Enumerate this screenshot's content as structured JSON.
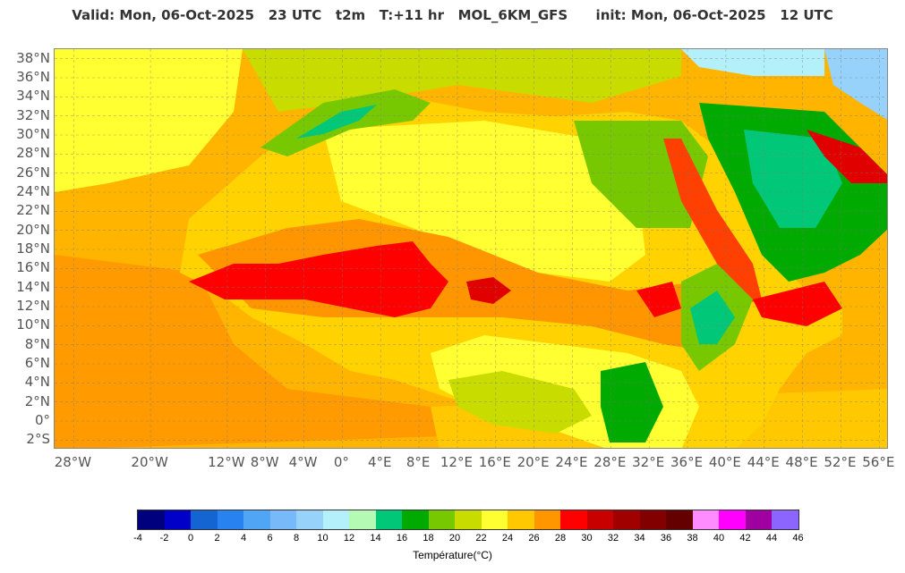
{
  "title": "Valid: Mon, 06-Oct-2025   23 UTC   t2m   T:+11 hr   MOL_6KM_GFS      init: Mon, 06-Oct-2025   12 UTC",
  "map": {
    "lat_labels": [
      "38°N",
      "36°N",
      "34°N",
      "32°N",
      "30°N",
      "28°N",
      "26°N",
      "24°N",
      "22°N",
      "20°N",
      "18°N",
      "16°N",
      "14°N",
      "12°N",
      "10°N",
      "8°N",
      "6°N",
      "4°N",
      "2°N",
      "0°",
      "2°S"
    ],
    "lon_labels": [
      "28°W",
      "20°W",
      "12°W",
      "8°W",
      "4°W",
      "0°",
      "4°E",
      "8°E",
      "12°E",
      "16°E",
      "20°E",
      "24°E",
      "28°E",
      "32°E",
      "36°E",
      "40°E",
      "44°E",
      "48°E",
      "52°E",
      "56°E"
    ],
    "lon_values": [
      -28,
      -20,
      -12,
      -8,
      -4,
      0,
      4,
      8,
      12,
      16,
      20,
      24,
      28,
      32,
      36,
      40,
      44,
      48,
      52,
      56
    ],
    "lon_range": [
      -30,
      57
    ],
    "lat_range": [
      -3,
      39
    ],
    "grid": true
  },
  "colorbar": {
    "title": "Température(°C)",
    "ticks": [
      "-4",
      "-2",
      "0",
      "2",
      "4",
      "6",
      "8",
      "10",
      "12",
      "14",
      "16",
      "18",
      "20",
      "22",
      "24",
      "26",
      "28",
      "30",
      "32",
      "34",
      "36",
      "38",
      "40",
      "42",
      "44",
      "46"
    ],
    "colors": [
      "#00007f",
      "#0000c8",
      "#1464d2",
      "#2882f0",
      "#50a5f5",
      "#78b9fa",
      "#96d2fa",
      "#b4f0fa",
      "#b4fab4",
      "#00c878",
      "#00aa00",
      "#78c800",
      "#c8dc00",
      "#ffff32",
      "#ffc800",
      "#ff9600",
      "#ff0000",
      "#c80000",
      "#a00000",
      "#820000",
      "#640000",
      "#ff8cff",
      "#ff00ff",
      "#a000a0",
      "#8c64ff"
    ]
  }
}
